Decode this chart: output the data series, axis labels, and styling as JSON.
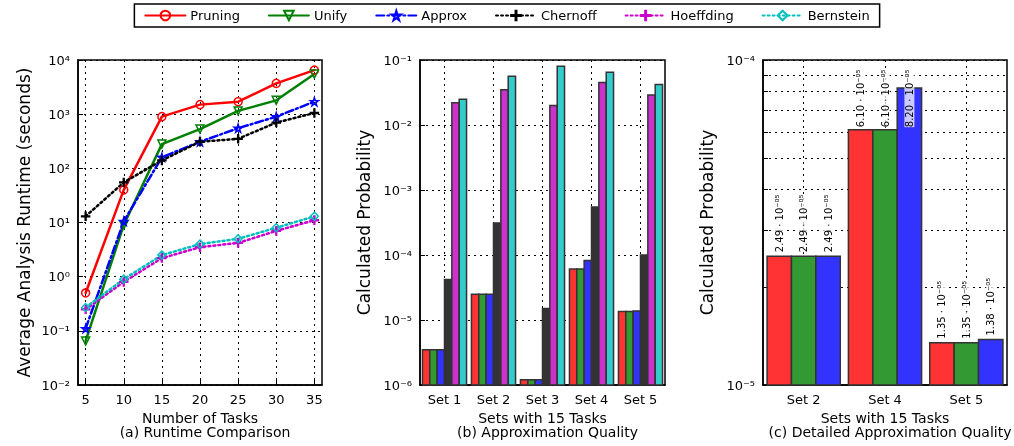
{
  "chart_data": [
    {
      "type": "line",
      "title": "(a) Runtime Comparison",
      "xlabel": "Number of Tasks",
      "ylabel": "Average Analysis Runtime (seconds)",
      "x": [
        5,
        10,
        15,
        20,
        25,
        30,
        35
      ],
      "xlim": [
        4,
        36
      ],
      "xticks": [
        5,
        10,
        15,
        20,
        25,
        30,
        35
      ],
      "log": "y",
      "ylim": [
        0.01,
        10000
      ],
      "yticks": [
        {
          "value": 0.01,
          "label": "10⁻²"
        },
        {
          "value": 0.1,
          "label": "10⁻¹"
        },
        {
          "value": 1,
          "label": "10⁰"
        },
        {
          "value": 10,
          "label": "10¹"
        },
        {
          "value": 100,
          "label": "10²"
        },
        {
          "value": 1000,
          "label": "10³"
        },
        {
          "value": 10000,
          "label": "10⁴"
        }
      ],
      "grid": true,
      "legend": "top",
      "series": [
        {
          "name": "Pruning",
          "color": "#ff0000",
          "marker": "circle",
          "line_style": "solid",
          "values": [
            0.5,
            40,
            900,
            1500,
            1700,
            3700,
            6500
          ]
        },
        {
          "name": "Unify",
          "color": "#008000",
          "marker": "triangle",
          "line_style": "solid",
          "values": [
            0.065,
            9,
            280,
            530,
            1150,
            1800,
            5500
          ]
        },
        {
          "name": "Approx",
          "color": "#0000ff",
          "marker": "star",
          "line_style": "dashed",
          "values": [
            0.11,
            10.5,
            160,
            310,
            550,
            900,
            1700
          ]
        },
        {
          "name": "Chernoff",
          "color": "#000000",
          "marker": "cross",
          "line_style": "dotted",
          "values": [
            13,
            55,
            140,
            310,
            350,
            700,
            1050
          ]
        },
        {
          "name": "Hoeffding",
          "color": "#cc00cc",
          "marker": "cross",
          "line_style": "dotted",
          "values": [
            0.25,
            0.8,
            2.2,
            3.5,
            4.2,
            7,
            11
          ]
        },
        {
          "name": "Bernstein",
          "color": "#00bfbf",
          "marker": "diamond",
          "line_style": "dotted",
          "values": [
            0.27,
            0.9,
            2.5,
            4,
            5,
            8,
            13
          ]
        }
      ]
    },
    {
      "type": "bar",
      "title": "(b) Approximation Quality",
      "xlabel": "Sets with 15 Tasks",
      "ylabel": "Calculated Probability",
      "categories": [
        "Set 1",
        "Set 2",
        "Set 3",
        "Set 4",
        "Set 5"
      ],
      "log": "y",
      "ylim": [
        1e-06,
        0.1
      ],
      "yticks": [
        {
          "value": 1e-06,
          "label": "10⁻⁶"
        },
        {
          "value": 1e-05,
          "label": "10⁻⁵"
        },
        {
          "value": 0.0001,
          "label": "10⁻⁴"
        },
        {
          "value": 0.001,
          "label": "10⁻³"
        },
        {
          "value": 0.01,
          "label": "10⁻²"
        },
        {
          "value": 0.1,
          "label": "10⁻¹"
        }
      ],
      "grid": true,
      "series": [
        {
          "color": "#ff3333",
          "values": [
            3.5e-06,
            2.49e-05,
            1.2e-06,
            6.1e-05,
            1.35e-05
          ]
        },
        {
          "color": "#339933",
          "values": [
            3.5e-06,
            2.49e-05,
            1.2e-06,
            6.1e-05,
            1.35e-05
          ]
        },
        {
          "color": "#3333ff",
          "values": [
            3.5e-06,
            2.49e-05,
            1.2e-06,
            8.2e-05,
            1.38e-05
          ]
        },
        {
          "color": "#333333",
          "values": [
            4.2e-05,
            0.00031,
            1.5e-05,
            0.00055,
            0.0001
          ]
        },
        {
          "color": "#cc33cc",
          "values": [
            0.022,
            0.035,
            0.02,
            0.045,
            0.029
          ]
        },
        {
          "color": "#33cccc",
          "values": [
            0.025,
            0.056,
            0.08,
            0.065,
            0.042
          ]
        }
      ]
    },
    {
      "type": "bar",
      "title": "(c) Detailed Approximation Quality",
      "xlabel": "Sets with 15 Tasks",
      "ylabel": "Calculated Probability",
      "categories": [
        "Set 2",
        "Set 4",
        "Set 5"
      ],
      "log": "y",
      "ylim": [
        1e-05,
        0.0001
      ],
      "yticks": [
        {
          "value": 1e-05,
          "label": "10⁻⁵"
        },
        {
          "value": 2e-05,
          "label": null
        },
        {
          "value": 3e-05,
          "label": null
        },
        {
          "value": 4e-05,
          "label": null
        },
        {
          "value": 5e-05,
          "label": null
        },
        {
          "value": 6e-05,
          "label": null
        },
        {
          "value": 7e-05,
          "label": null
        },
        {
          "value": 8e-05,
          "label": null
        },
        {
          "value": 9e-05,
          "label": null
        },
        {
          "value": 0.0001,
          "label": "10⁻⁴"
        }
      ],
      "grid": true,
      "series": [
        {
          "color": "#ff3333",
          "values": [
            2.49e-05,
            6.1e-05,
            1.35e-05
          ],
          "value_labels": [
            "2.49 · 10⁻⁰⁵",
            "6.10 · 10⁻⁰⁵",
            "1.35 · 10⁻⁰⁵"
          ]
        },
        {
          "color": "#339933",
          "values": [
            2.49e-05,
            6.1e-05,
            1.35e-05
          ],
          "value_labels": [
            "2.49 · 10⁻⁰⁵",
            "6.10 · 10⁻⁰⁵",
            "1.35 · 10⁻⁰⁵"
          ]
        },
        {
          "color": "#3333ff",
          "values": [
            2.49e-05,
            8.2e-05,
            1.38e-05
          ],
          "value_labels": [
            "2.49 · 10⁻⁰⁵",
            "8.20 · 10⁻⁰⁵",
            "1.38 · 10⁻⁰⁵"
          ]
        }
      ]
    }
  ]
}
